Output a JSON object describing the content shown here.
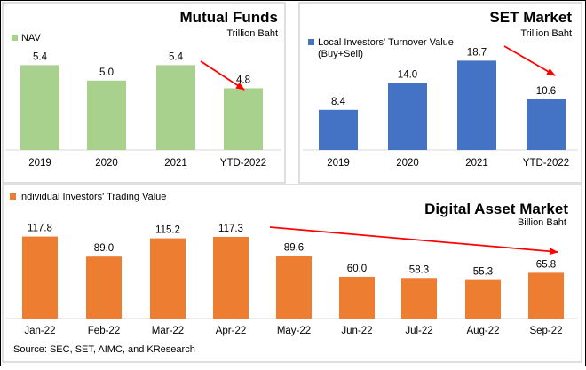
{
  "chart_data": [
    {
      "type": "bar",
      "title": "Mutual Funds",
      "unit": "Trillion Baht",
      "legend": "NAV",
      "color": "#a9d18e",
      "categories": [
        "2019",
        "2020",
        "2021",
        "YTD-2022"
      ],
      "values": [
        5.4,
        5.0,
        5.4,
        4.8
      ],
      "labels": [
        "5.4",
        "5.0",
        "5.4",
        "4.8"
      ],
      "ylim": [
        3.2,
        5.8
      ],
      "trend_arrow": "down, from 2021 to YTD-2022"
    },
    {
      "type": "bar",
      "title": "SET Market",
      "unit": "Trillion Baht",
      "legend": "Local Investors' Turnover Value",
      "legend_line2": "(Buy+Sell)",
      "color": "#4472c4",
      "categories": [
        "2019",
        "2020",
        "2021",
        "YTD-2022"
      ],
      "values": [
        8.4,
        14.0,
        18.7,
        10.6
      ],
      "labels": [
        "8.4",
        "14.0",
        "18.7",
        "10.6"
      ],
      "ylim": [
        0,
        21
      ],
      "trend_arrow": "down, from 2021 to YTD-2022"
    },
    {
      "type": "bar",
      "title": "Digital Asset Market",
      "unit": "Billion Baht",
      "legend": "Individual Investors' Trading Value",
      "color": "#ed7d31",
      "categories": [
        "Jan-22",
        "Feb-22",
        "Mar-22",
        "Apr-22",
        "May-22",
        "Jun-22",
        "Jul-22",
        "Aug-22",
        "Sep-22"
      ],
      "values": [
        117.8,
        89.0,
        115.2,
        117.3,
        89.6,
        60.0,
        58.3,
        55.3,
        65.8
      ],
      "labels": [
        "117.8",
        "89.0",
        "115.2",
        "117.3",
        "89.6",
        "60.0",
        "58.3",
        "55.3",
        "65.8"
      ],
      "ylim": [
        0,
        130
      ],
      "trend_arrow": "down, from Apr-22 to Sep-22"
    }
  ],
  "arrow_color": "#ff0000",
  "source": "Source: SEC, SET, AIMC, and KResearch"
}
